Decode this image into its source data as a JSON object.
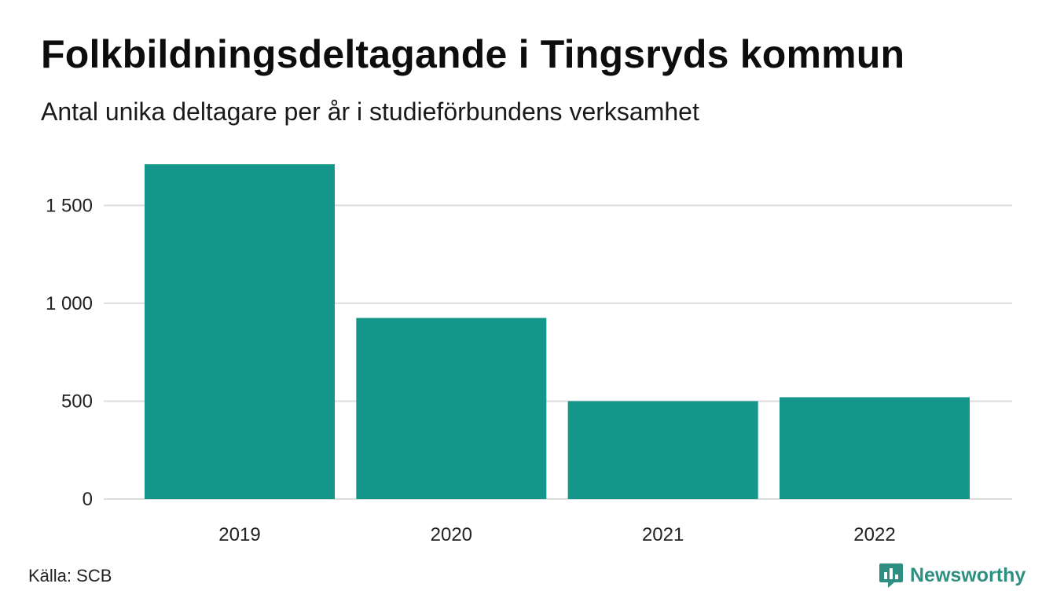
{
  "header": {
    "title": "Folkbildningsdeltagande i Tingsryds kommun",
    "subtitle": "Antal unika deltagare per år i studieförbundens verksamhet"
  },
  "footer": {
    "source": "Källa: SCB",
    "brand": "Newsworthy",
    "brand_icon": "newsworthy-logo-icon"
  },
  "colors": {
    "bar": "#15968A",
    "grid": "#dddddd",
    "brand": "#2e8f80"
  },
  "chart_data": {
    "type": "bar",
    "title": "Folkbildningsdeltagande i Tingsryds kommun",
    "subtitle": "Antal unika deltagare per år i studieförbundens verksamhet",
    "categories": [
      "2019",
      "2020",
      "2021",
      "2022"
    ],
    "values": [
      1710,
      925,
      500,
      520
    ],
    "ylim": [
      0,
      1710
    ],
    "yticks": [
      0,
      500,
      1000,
      1500
    ],
    "ytick_labels": [
      "0",
      "500",
      "1 000",
      "1 500"
    ],
    "xlabel": "",
    "ylabel": "",
    "grid": true
  }
}
